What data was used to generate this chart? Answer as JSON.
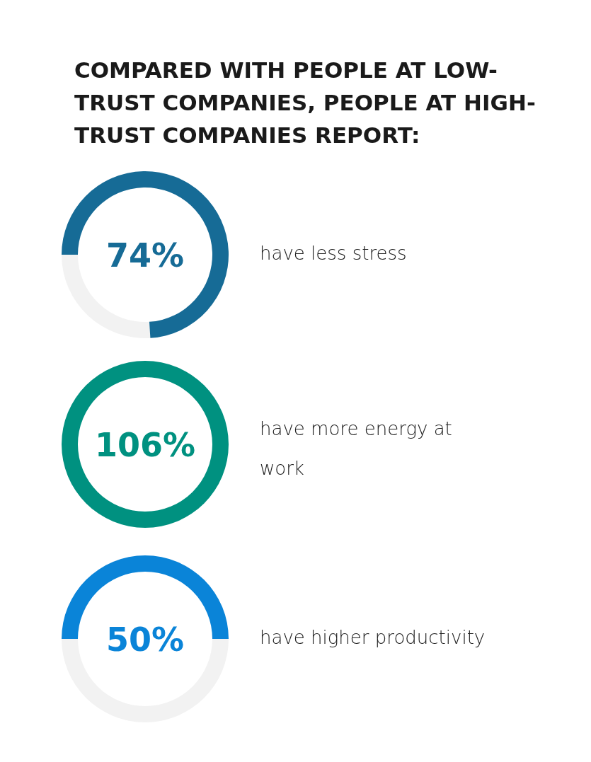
{
  "chart_data": {
    "type": "other",
    "title": "COMPARED WITH PEOPLE AT LOW-TRUST COMPANIES, PEOPLE AT HIGH-TRUST COMPANIES REPORT:",
    "categories": [
      "have less stress",
      "have more energy at work",
      "have higher productivity"
    ],
    "values": [
      74,
      106,
      50
    ],
    "value_labels": [
      "74%",
      "106%",
      "50%"
    ],
    "colors": [
      "#166b96",
      "#009180",
      "#0a84d8"
    ]
  }
}
